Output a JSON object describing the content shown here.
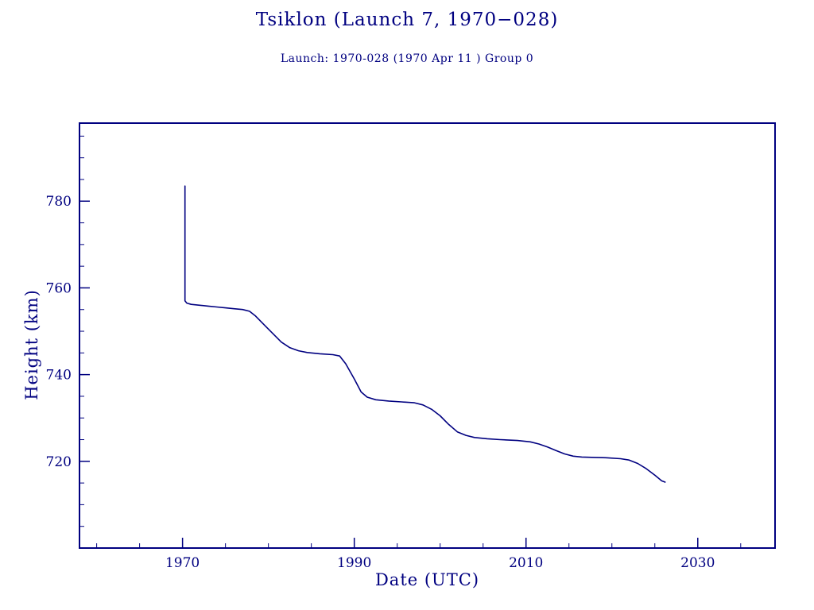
{
  "page": {
    "title": "Tsiklon (Launch 7, 1970−028)",
    "subtitle": "Launch: 1970-028  (1970 Apr 11 )  Group 0"
  },
  "colors": {
    "accent": "#000080",
    "background": "#ffffff"
  },
  "chart_data": {
    "type": "line",
    "title": "Tsiklon (Launch 7, 1970−028)",
    "subtitle": "Launch: 1970-028  (1970 Apr 11 )  Group 0",
    "xlabel": "Date (UTC)",
    "ylabel": "Height (km)",
    "xlim": [
      1958,
      2039
    ],
    "ylim": [
      700,
      798
    ],
    "x_major_ticks": [
      1970,
      1990,
      2010,
      2030
    ],
    "y_major_ticks": [
      720,
      740,
      760,
      780
    ],
    "x_minor_step": 5,
    "y_minor_step": 5,
    "grid": false,
    "legend": "none",
    "line_color": "#000080",
    "series": [
      {
        "name": "height_km",
        "points": [
          [
            1970.28,
            783.5
          ],
          [
            1970.28,
            757.0
          ],
          [
            1970.5,
            756.5
          ],
          [
            1971.0,
            756.2
          ],
          [
            1972.0,
            756.0
          ],
          [
            1973.0,
            755.8
          ],
          [
            1974.0,
            755.6
          ],
          [
            1975.0,
            755.4
          ],
          [
            1976.0,
            755.2
          ],
          [
            1977.0,
            755.0
          ],
          [
            1977.8,
            754.6
          ],
          [
            1978.5,
            753.5
          ],
          [
            1979.5,
            751.5
          ],
          [
            1980.5,
            749.5
          ],
          [
            1981.5,
            747.5
          ],
          [
            1982.5,
            746.2
          ],
          [
            1983.5,
            745.5
          ],
          [
            1984.5,
            745.1
          ],
          [
            1986.0,
            744.8
          ],
          [
            1987.5,
            744.6
          ],
          [
            1988.3,
            744.3
          ],
          [
            1989.0,
            742.5
          ],
          [
            1990.0,
            739.0
          ],
          [
            1990.8,
            736.0
          ],
          [
            1991.5,
            734.8
          ],
          [
            1992.5,
            734.2
          ],
          [
            1994.0,
            733.9
          ],
          [
            1995.5,
            733.7
          ],
          [
            1997.0,
            733.5
          ],
          [
            1998.0,
            733.0
          ],
          [
            1999.0,
            732.0
          ],
          [
            2000.0,
            730.5
          ],
          [
            2001.0,
            728.5
          ],
          [
            2002.0,
            726.8
          ],
          [
            2003.0,
            726.0
          ],
          [
            2004.0,
            725.5
          ],
          [
            2005.5,
            725.2
          ],
          [
            2007.0,
            725.0
          ],
          [
            2009.0,
            724.8
          ],
          [
            2010.5,
            724.5
          ],
          [
            2011.5,
            724.0
          ],
          [
            2012.5,
            723.3
          ],
          [
            2013.5,
            722.5
          ],
          [
            2014.5,
            721.7
          ],
          [
            2015.5,
            721.2
          ],
          [
            2016.5,
            721.0
          ],
          [
            2018.0,
            720.9
          ],
          [
            2019.5,
            720.8
          ],
          [
            2021.0,
            720.6
          ],
          [
            2022.0,
            720.3
          ],
          [
            2023.0,
            719.5
          ],
          [
            2024.0,
            718.3
          ],
          [
            2025.0,
            716.8
          ],
          [
            2025.8,
            715.5
          ],
          [
            2026.2,
            715.2
          ]
        ]
      }
    ]
  }
}
